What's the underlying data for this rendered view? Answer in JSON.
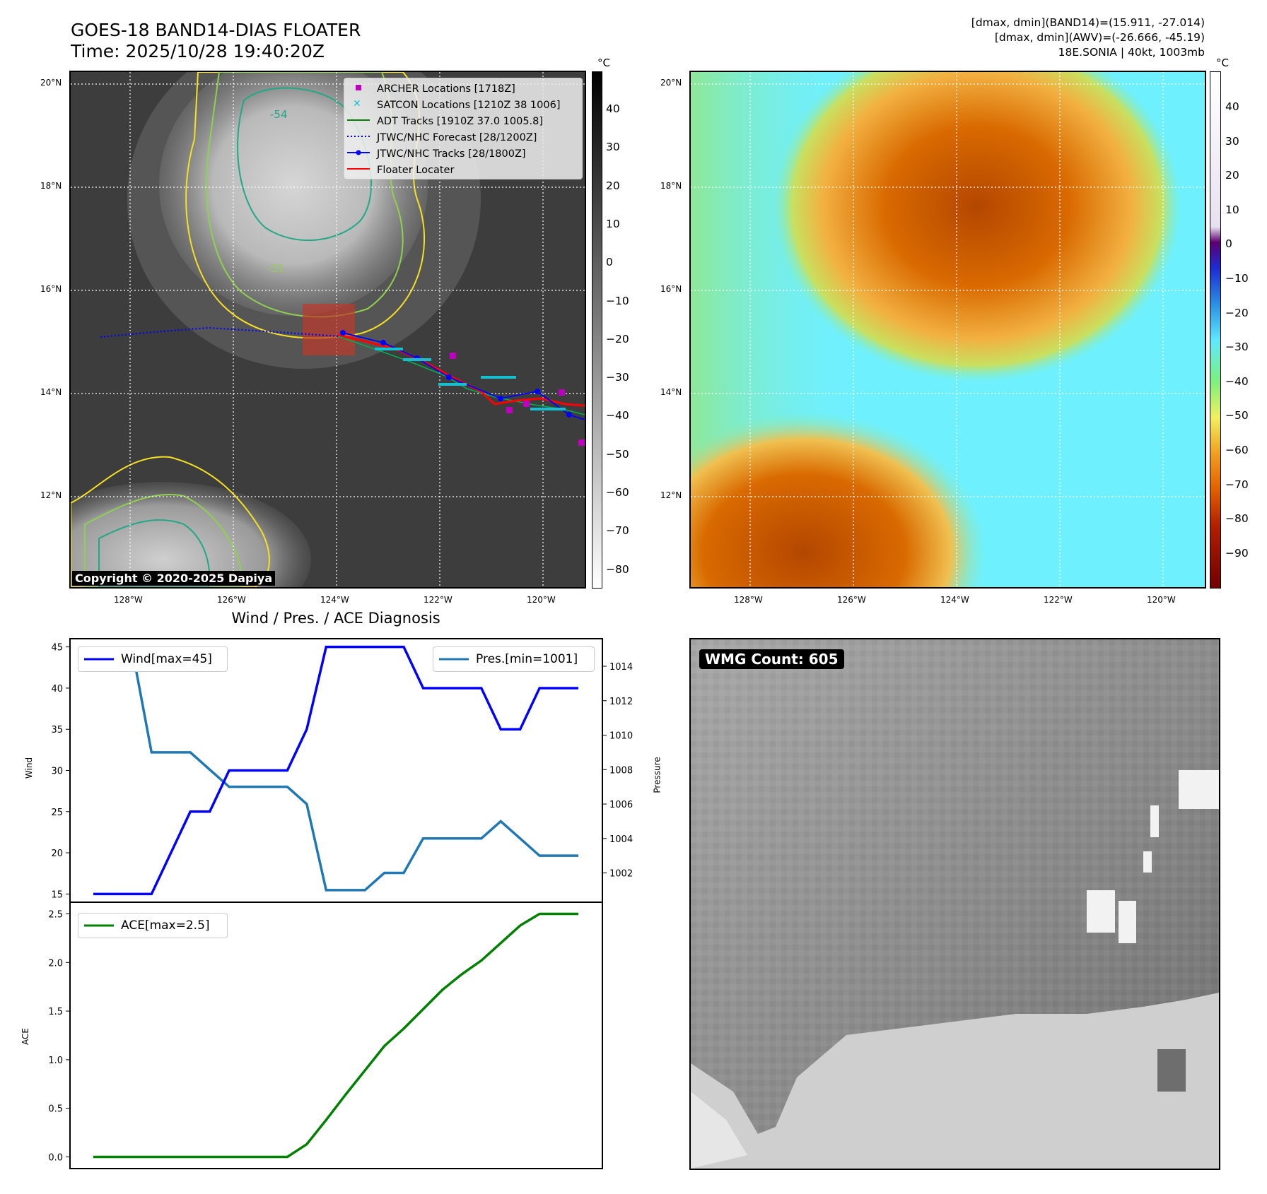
{
  "header": {
    "title_line1": "GOES-18 BAND14-DIAS FLOATER",
    "title_line2": "Time: 2025/10/28 19:40:20Z",
    "info_line1": "[dmax, dmin](BAND14)=(15.911, -27.014)",
    "info_line2": "[dmax, dmin](AWV)=(-26.666, -45.19)",
    "info_line3": "18E.SONIA | 40kt, 1003mb"
  },
  "colorbar_unit": "°C",
  "copyright": "Copyright © 2020-2025 Dapiya",
  "wmg_label": "WMG Count: 605",
  "colors": {
    "wind": "#0000ff",
    "pressure": "#1f77b4",
    "ace": "#008000",
    "archer": "#c000c0",
    "satcon": "#17becf",
    "adt": "#008000",
    "forecast": "#0000ff",
    "track": "#0000ff",
    "floater": "#ff0000"
  },
  "maps": {
    "lat_labels": [
      "20°N",
      "18°N",
      "16°N",
      "14°N",
      "12°N"
    ],
    "lon_labels": [
      "128°W",
      "126°W",
      "124°W",
      "122°W",
      "120°W"
    ],
    "legend": [
      {
        "label": "ARCHER Locations [1718Z]",
        "type": "square"
      },
      {
        "label": "SATCON Locations [1210Z 38 1006]",
        "type": "x"
      },
      {
        "label": "ADT Tracks [1910Z 37.0 1005.8]",
        "type": "line"
      },
      {
        "label": "JTWC/NHC Forecast [28/1200Z]",
        "type": "dotted"
      },
      {
        "label": "JTWC/NHC Tracks [28/1800Z]",
        "type": "dotline"
      },
      {
        "label": "Floater Locater",
        "type": "redline"
      }
    ],
    "contour_labels": [
      "-54",
      "-31"
    ],
    "colorbar1_ticks": [
      "40",
      "30",
      "20",
      "10",
      "0",
      "−10",
      "−20",
      "−30",
      "−40",
      "−50",
      "−60",
      "−70",
      "−80"
    ],
    "colorbar2_ticks": [
      "40",
      "30",
      "20",
      "10",
      "0",
      "−10",
      "−20",
      "−30",
      "−40",
      "−50",
      "−60",
      "−70",
      "−80",
      "−90"
    ]
  },
  "chart_data": [
    {
      "type": "line",
      "title": "Wind / Pres. / ACE Diagnosis",
      "x": [
        0,
        1,
        2,
        3,
        4,
        5,
        6,
        7,
        8,
        9,
        10,
        11,
        12,
        13,
        14,
        15,
        16,
        17,
        18,
        19,
        20,
        21,
        22,
        23,
        24,
        25
      ],
      "ylabel": "Wind",
      "ylabel2": "Pressure",
      "ylim": [
        14,
        46
      ],
      "y2lim": [
        1000.3,
        1015.6
      ],
      "yticks": [
        "15",
        "20",
        "25",
        "30",
        "35",
        "40",
        "45"
      ],
      "y2ticks": [
        "1002",
        "1004",
        "1006",
        "1008",
        "1010",
        "1012",
        "1014"
      ],
      "series": [
        {
          "name": "Wind[max=45]",
          "axis": "left",
          "values": [
            15,
            15,
            15,
            15,
            20,
            25,
            25,
            30,
            30,
            30,
            30,
            35,
            45,
            45,
            45,
            45,
            45,
            40,
            40,
            40,
            40,
            35,
            35,
            40,
            40,
            40
          ]
        },
        {
          "name": "Pres.[min=1001]",
          "axis": "right",
          "values": [
            1015,
            1015,
            1015,
            1009,
            1009,
            1009,
            1008,
            1007,
            1007,
            1007,
            1007,
            1006,
            1001,
            1001,
            1001,
            1002,
            1002,
            1004,
            1004,
            1004,
            1004,
            1005,
            1004,
            1003,
            1003,
            1003
          ]
        }
      ]
    },
    {
      "type": "line",
      "x": [
        0,
        1,
        2,
        3,
        4,
        5,
        6,
        7,
        8,
        9,
        10,
        11,
        12,
        13,
        14,
        15,
        16,
        17,
        18,
        19,
        20,
        21,
        22,
        23,
        24,
        25
      ],
      "ylabel": "ACE",
      "ylim": [
        -0.12,
        2.62
      ],
      "yticks": [
        "0.0",
        "0.5",
        "1.0",
        "1.5",
        "2.0",
        "2.5"
      ],
      "series": [
        {
          "name": "ACE[max=2.5]",
          "values": [
            0,
            0,
            0,
            0,
            0,
            0,
            0,
            0,
            0,
            0,
            0,
            0.13,
            0.38,
            0.64,
            0.89,
            1.14,
            1.32,
            1.52,
            1.72,
            1.88,
            2.02,
            2.2,
            2.38,
            2.5,
            2.5,
            2.5
          ]
        }
      ]
    }
  ]
}
